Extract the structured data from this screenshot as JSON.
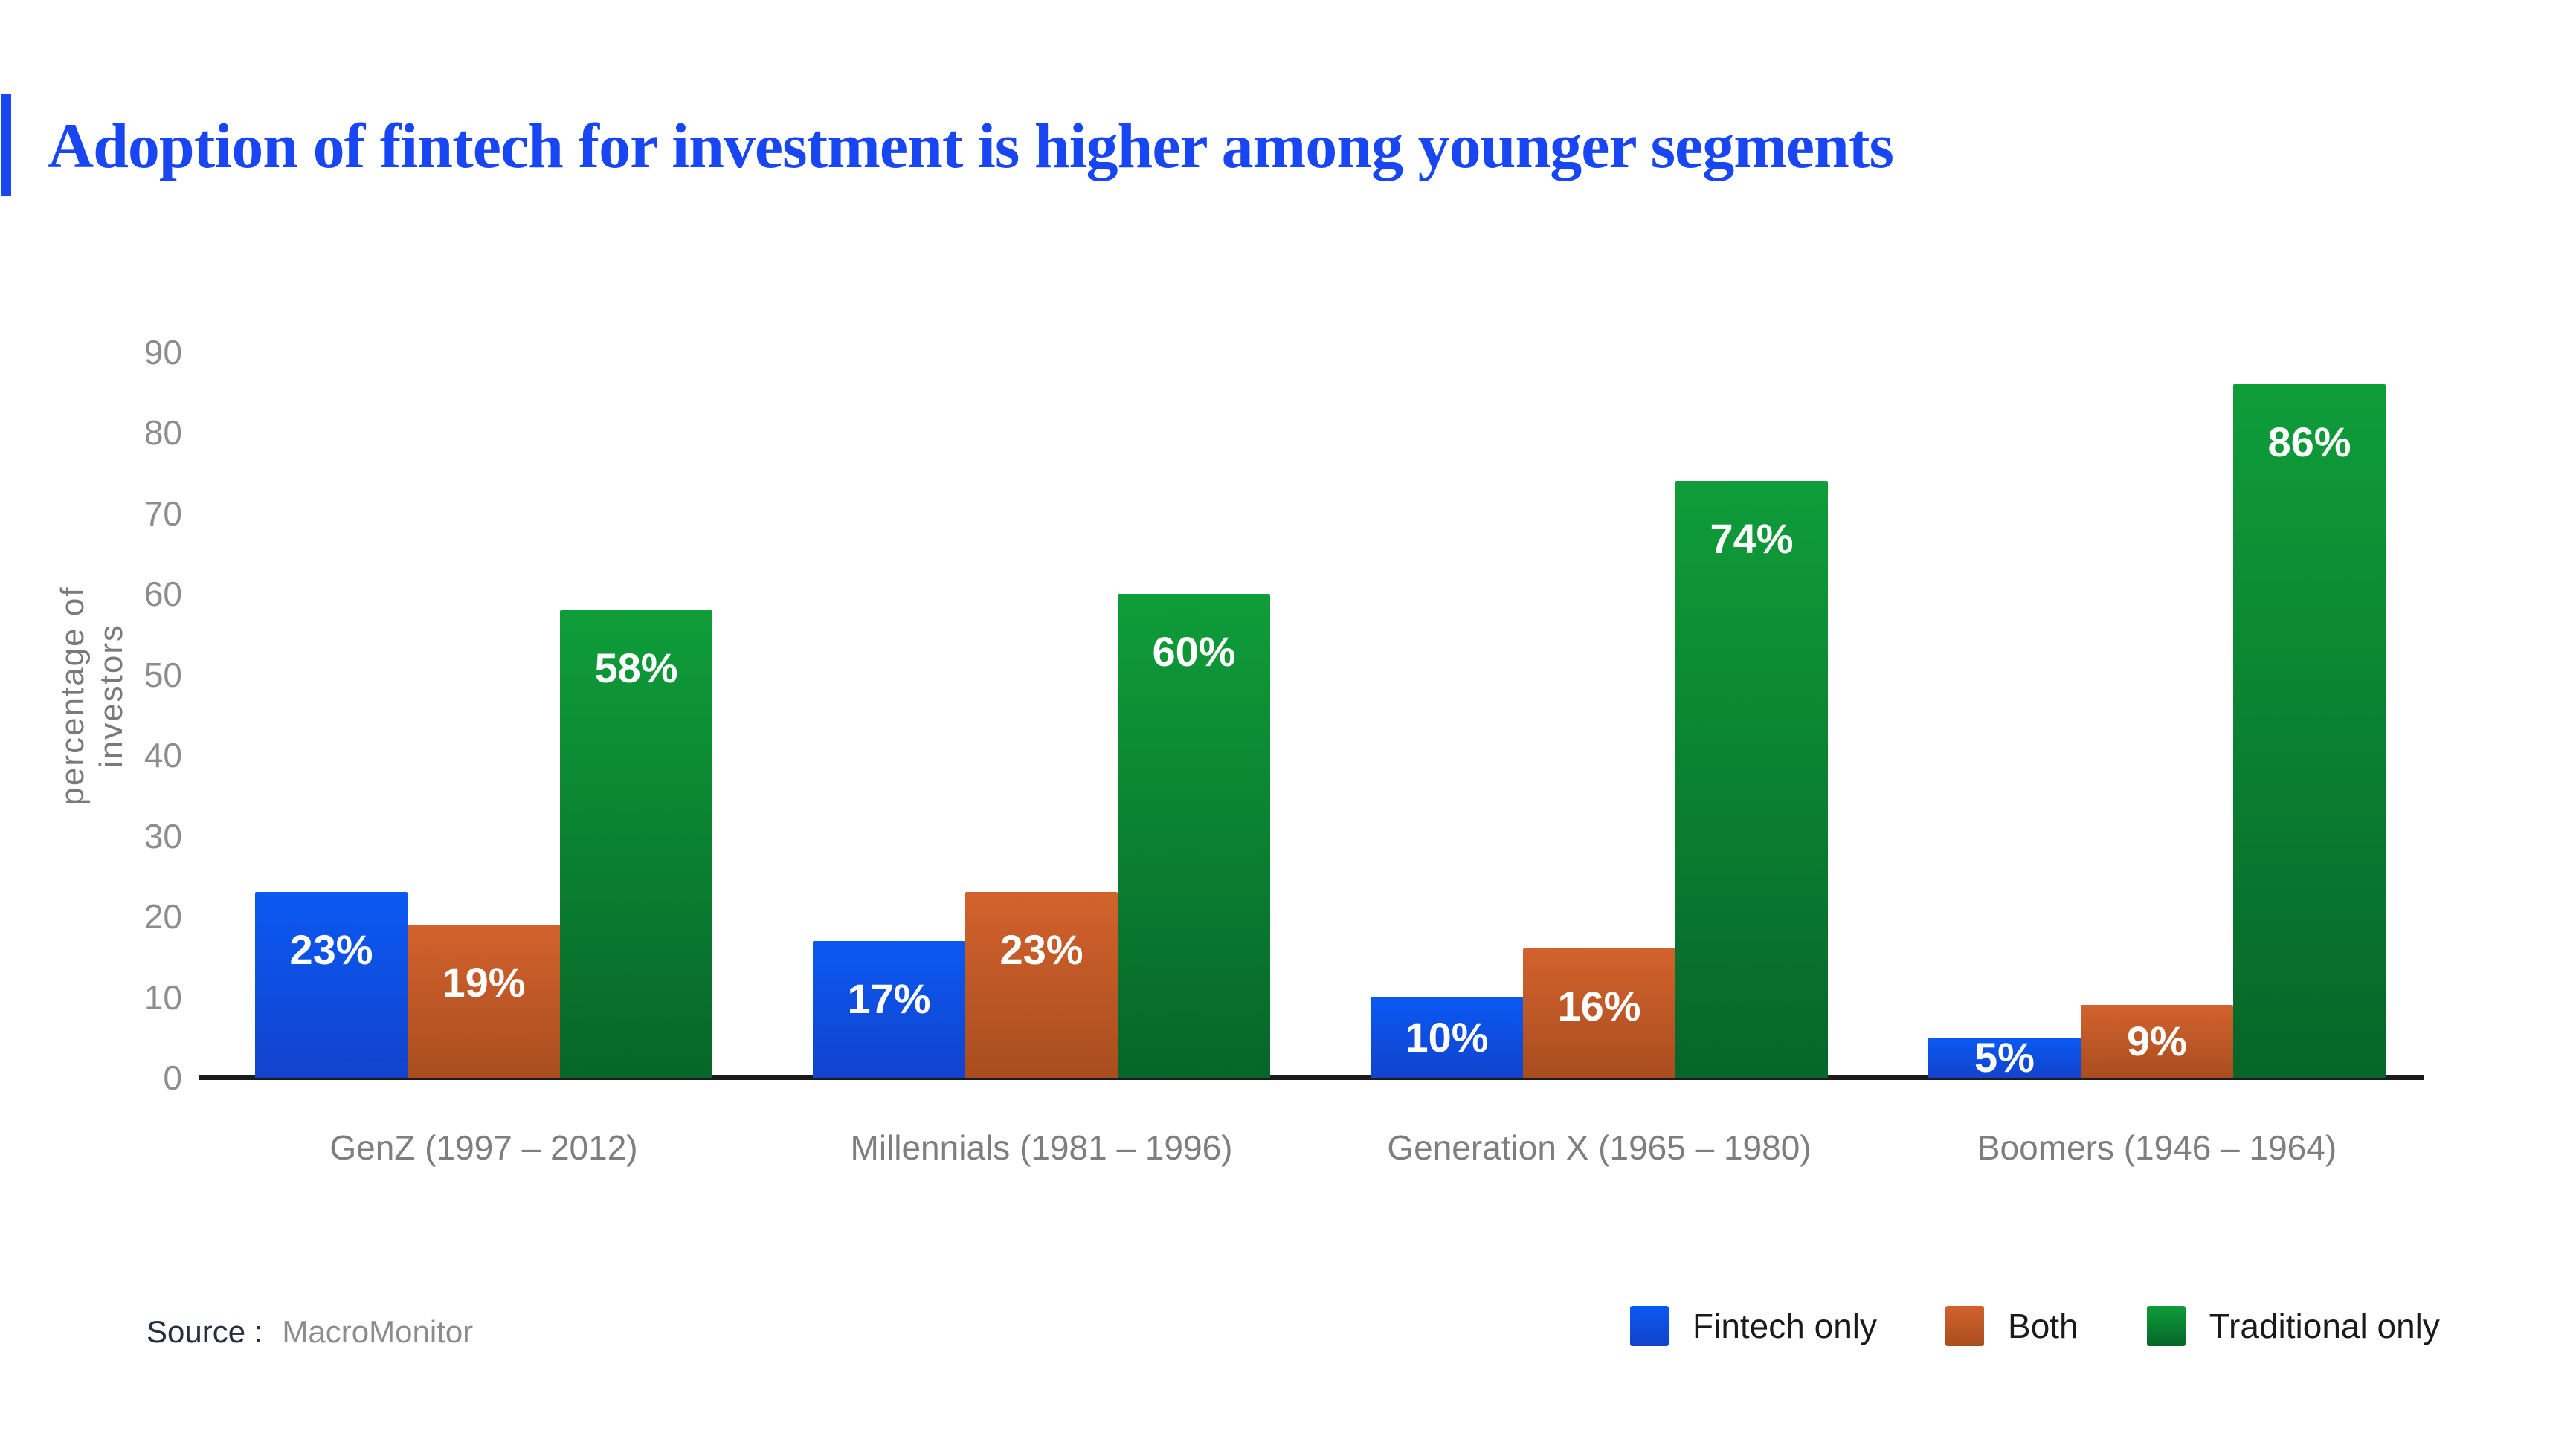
{
  "header": {
    "title": "Adoption of fintech for investment is higher among younger segments",
    "accent_color": "#1746f2"
  },
  "chart_data": {
    "type": "bar",
    "title": "Adoption of fintech for investment is higher among younger segments",
    "categories": [
      "GenZ (1997 – 2012)",
      "Millennials (1981 – 1996)",
      "Generation X (1965 – 1980)",
      "Boomers (1946 – 1964)"
    ],
    "series": [
      {
        "name": "Fintech only",
        "values": [
          23,
          17,
          10,
          5
        ],
        "color_top": "#0a59f2",
        "color_bottom": "#1243cd"
      },
      {
        "name": "Both",
        "values": [
          19,
          23,
          16,
          9
        ],
        "color_top": "#d2622d",
        "color_bottom": "#a94d1f"
      },
      {
        "name": "Traditional only",
        "values": [
          58,
          60,
          74,
          86
        ],
        "color_top": "#0f9d39",
        "color_bottom": "#066629"
      }
    ],
    "value_suffix": "%",
    "xlabel": "",
    "ylabel": "percentage of investors",
    "ylim": [
      0,
      90
    ],
    "y_ticks": [
      90,
      80,
      70,
      60,
      50,
      40,
      30,
      20,
      10,
      0
    ],
    "grid": false,
    "legend_position": "bottom-right",
    "bar_label_color": "#ffffff",
    "axis_line_color": "#1b1b1b",
    "tick_label_color": "#8d8d8d"
  },
  "source": {
    "label": "Source :",
    "value": "MacroMonitor"
  }
}
